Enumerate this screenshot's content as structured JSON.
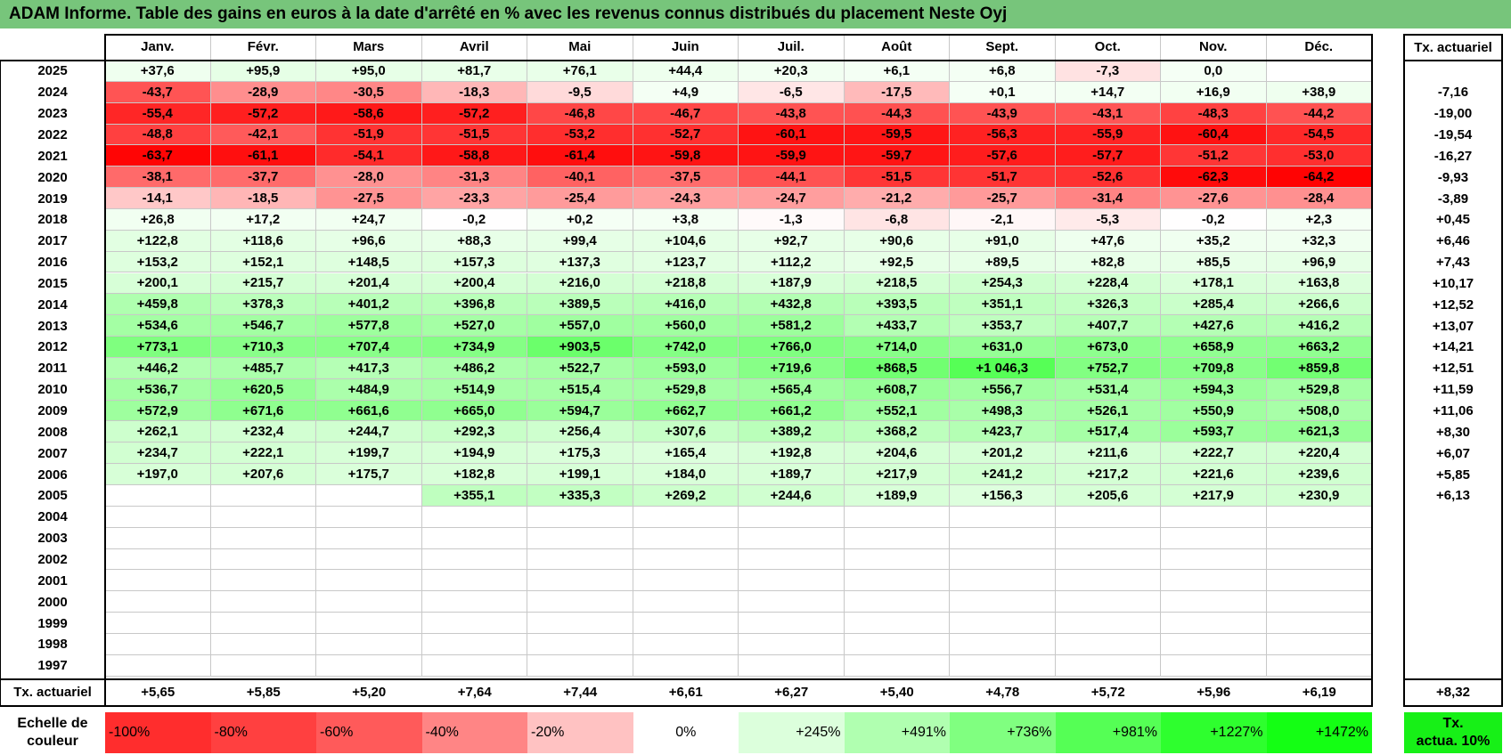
{
  "title": "ADAM Informe. Table des gains en euros à la date d'arrêté en % avec les revenus connus distribués du placement Neste Oyj",
  "months": [
    "Janv.",
    "Févr.",
    "Mars",
    "Avril",
    "Mai",
    "Juin",
    "Juil.",
    "Août",
    "Sept.",
    "Oct.",
    "Nov.",
    "Déc."
  ],
  "annual_header": "Tx. actuariel",
  "rows": [
    {
      "year": "2025",
      "values": [
        "+37,6",
        "+95,9",
        "+95,0",
        "+81,7",
        "+76,1",
        "+44,4",
        "+20,3",
        "+6,1",
        "+6,8",
        "-7,3",
        "0,0",
        ""
      ],
      "annual": ""
    },
    {
      "year": "2024",
      "values": [
        "-43,7",
        "-28,9",
        "-30,5",
        "-18,3",
        "-9,5",
        "+4,9",
        "-6,5",
        "-17,5",
        "+0,1",
        "+14,7",
        "+16,9",
        "+38,9"
      ],
      "annual": "-7,16"
    },
    {
      "year": "2023",
      "values": [
        "-55,4",
        "-57,2",
        "-58,6",
        "-57,2",
        "-46,8",
        "-46,7",
        "-43,8",
        "-44,3",
        "-43,9",
        "-43,1",
        "-48,3",
        "-44,2"
      ],
      "annual": "-19,00"
    },
    {
      "year": "2022",
      "values": [
        "-48,8",
        "-42,1",
        "-51,9",
        "-51,5",
        "-53,2",
        "-52,7",
        "-60,1",
        "-59,5",
        "-56,3",
        "-55,9",
        "-60,4",
        "-54,5"
      ],
      "annual": "-19,54"
    },
    {
      "year": "2021",
      "values": [
        "-63,7",
        "-61,1",
        "-54,1",
        "-58,8",
        "-61,4",
        "-59,8",
        "-59,9",
        "-59,7",
        "-57,6",
        "-57,7",
        "-51,2",
        "-53,0"
      ],
      "annual": "-16,27"
    },
    {
      "year": "2020",
      "values": [
        "-38,1",
        "-37,7",
        "-28,0",
        "-31,3",
        "-40,1",
        "-37,5",
        "-44,1",
        "-51,5",
        "-51,7",
        "-52,6",
        "-62,3",
        "-64,2"
      ],
      "annual": "-9,93"
    },
    {
      "year": "2019",
      "values": [
        "-14,1",
        "-18,5",
        "-27,5",
        "-23,3",
        "-25,4",
        "-24,3",
        "-24,7",
        "-21,2",
        "-25,7",
        "-31,4",
        "-27,6",
        "-28,4"
      ],
      "annual": "-3,89"
    },
    {
      "year": "2018",
      "values": [
        "+26,8",
        "+17,2",
        "+24,7",
        "-0,2",
        "+0,2",
        "+3,8",
        "-1,3",
        "-6,8",
        "-2,1",
        "-5,3",
        "-0,2",
        "+2,3"
      ],
      "annual": "+0,45"
    },
    {
      "year": "2017",
      "values": [
        "+122,8",
        "+118,6",
        "+96,6",
        "+88,3",
        "+99,4",
        "+104,6",
        "+92,7",
        "+90,6",
        "+91,0",
        "+47,6",
        "+35,2",
        "+32,3"
      ],
      "annual": "+6,46"
    },
    {
      "year": "2016",
      "values": [
        "+153,2",
        "+152,1",
        "+148,5",
        "+157,3",
        "+137,3",
        "+123,7",
        "+112,2",
        "+92,5",
        "+89,5",
        "+82,8",
        "+85,5",
        "+96,9"
      ],
      "annual": "+7,43"
    },
    {
      "year": "2015",
      "values": [
        "+200,1",
        "+215,7",
        "+201,4",
        "+200,4",
        "+216,0",
        "+218,8",
        "+187,9",
        "+218,5",
        "+254,3",
        "+228,4",
        "+178,1",
        "+163,8"
      ],
      "annual": "+10,17"
    },
    {
      "year": "2014",
      "values": [
        "+459,8",
        "+378,3",
        "+401,2",
        "+396,8",
        "+389,5",
        "+416,0",
        "+432,8",
        "+393,5",
        "+351,1",
        "+326,3",
        "+285,4",
        "+266,6"
      ],
      "annual": "+12,52"
    },
    {
      "year": "2013",
      "values": [
        "+534,6",
        "+546,7",
        "+577,8",
        "+527,0",
        "+557,0",
        "+560,0",
        "+581,2",
        "+433,7",
        "+353,7",
        "+407,7",
        "+427,6",
        "+416,2"
      ],
      "annual": "+13,07"
    },
    {
      "year": "2012",
      "values": [
        "+773,1",
        "+710,3",
        "+707,4",
        "+734,9",
        "+903,5",
        "+742,0",
        "+766,0",
        "+714,0",
        "+631,0",
        "+673,0",
        "+658,9",
        "+663,2"
      ],
      "annual": "+14,21"
    },
    {
      "year": "2011",
      "values": [
        "+446,2",
        "+485,7",
        "+417,3",
        "+486,2",
        "+522,7",
        "+593,0",
        "+719,6",
        "+868,5",
        "+1 046,3",
        "+752,7",
        "+709,8",
        "+859,8"
      ],
      "annual": "+12,51"
    },
    {
      "year": "2010",
      "values": [
        "+536,7",
        "+620,5",
        "+484,9",
        "+514,9",
        "+515,4",
        "+529,8",
        "+565,4",
        "+608,7",
        "+556,7",
        "+531,4",
        "+594,3",
        "+529,8"
      ],
      "annual": "+11,59"
    },
    {
      "year": "2009",
      "values": [
        "+572,9",
        "+671,6",
        "+661,6",
        "+665,0",
        "+594,7",
        "+662,7",
        "+661,2",
        "+552,1",
        "+498,3",
        "+526,1",
        "+550,9",
        "+508,0"
      ],
      "annual": "+11,06"
    },
    {
      "year": "2008",
      "values": [
        "+262,1",
        "+232,4",
        "+244,7",
        "+292,3",
        "+256,4",
        "+307,6",
        "+389,2",
        "+368,2",
        "+423,7",
        "+517,4",
        "+593,7",
        "+621,3"
      ],
      "annual": "+8,30"
    },
    {
      "year": "2007",
      "values": [
        "+234,7",
        "+222,1",
        "+199,7",
        "+194,9",
        "+175,3",
        "+165,4",
        "+192,8",
        "+204,6",
        "+201,2",
        "+211,6",
        "+222,7",
        "+220,4"
      ],
      "annual": "+6,07"
    },
    {
      "year": "2006",
      "values": [
        "+197,0",
        "+207,6",
        "+175,7",
        "+182,8",
        "+199,1",
        "+184,0",
        "+189,7",
        "+217,9",
        "+241,2",
        "+217,2",
        "+221,6",
        "+239,6"
      ],
      "annual": "+5,85"
    },
    {
      "year": "2005",
      "values": [
        "",
        "",
        "",
        "+355,1",
        "+335,3",
        "+269,2",
        "+244,6",
        "+189,9",
        "+156,3",
        "+205,6",
        "+217,9",
        "+230,9"
      ],
      "annual": "+6,13"
    },
    {
      "year": "2004",
      "values": [
        "",
        "",
        "",
        "",
        "",
        "",
        "",
        "",
        "",
        "",
        "",
        ""
      ],
      "annual": ""
    },
    {
      "year": "2003",
      "values": [
        "",
        "",
        "",
        "",
        "",
        "",
        "",
        "",
        "",
        "",
        "",
        ""
      ],
      "annual": ""
    },
    {
      "year": "2002",
      "values": [
        "",
        "",
        "",
        "",
        "",
        "",
        "",
        "",
        "",
        "",
        "",
        ""
      ],
      "annual": ""
    },
    {
      "year": "2001",
      "values": [
        "",
        "",
        "",
        "",
        "",
        "",
        "",
        "",
        "",
        "",
        "",
        ""
      ],
      "annual": ""
    },
    {
      "year": "2000",
      "values": [
        "",
        "",
        "",
        "",
        "",
        "",
        "",
        "",
        "",
        "",
        "",
        ""
      ],
      "annual": ""
    },
    {
      "year": "1999",
      "values": [
        "",
        "",
        "",
        "",
        "",
        "",
        "",
        "",
        "",
        "",
        "",
        ""
      ],
      "annual": ""
    },
    {
      "year": "1998",
      "values": [
        "",
        "",
        "",
        "",
        "",
        "",
        "",
        "",
        "",
        "",
        "",
        ""
      ],
      "annual": ""
    },
    {
      "year": "1997",
      "values": [
        "",
        "",
        "",
        "",
        "",
        "",
        "",
        "",
        "",
        "",
        "",
        ""
      ],
      "annual": ""
    }
  ],
  "footer": {
    "label": "Tx. actuariel",
    "values": [
      "+5,65",
      "+5,85",
      "+5,20",
      "+7,64",
      "+7,44",
      "+6,61",
      "+6,27",
      "+5,40",
      "+4,78",
      "+5,72",
      "+5,96",
      "+6,19"
    ],
    "annual": "+8,32"
  },
  "legend": {
    "label_line1": "Echelle de",
    "label_line2": "couleur",
    "items": [
      {
        "text": "-100%",
        "color": "#ff2d2d",
        "align": "left"
      },
      {
        "text": "-80%",
        "color": "#ff4040",
        "align": "left"
      },
      {
        "text": "-60%",
        "color": "#ff5a5a",
        "align": "left"
      },
      {
        "text": "-40%",
        "color": "#ff8585",
        "align": "left"
      },
      {
        "text": "-20%",
        "color": "#ffc2c2",
        "align": "left"
      },
      {
        "text": "0%",
        "color": "#ffffff",
        "align": "center"
      },
      {
        "text": "+245%",
        "color": "#dcffdc",
        "align": "right"
      },
      {
        "text": "+491%",
        "color": "#b0ffb0",
        "align": "right"
      },
      {
        "text": "+736%",
        "color": "#80ff80",
        "align": "right"
      },
      {
        "text": "+981%",
        "color": "#55ff55",
        "align": "right"
      },
      {
        "text": "+1227%",
        "color": "#2eff2e",
        "align": "right"
      },
      {
        "text": "+1472%",
        "color": "#14ff14",
        "align": "right"
      }
    ],
    "final_line1": "Tx.",
    "final_line2": "actua. 10%",
    "final_color": "#17f017"
  },
  "colors": {
    "title_bar": "#77c57b",
    "negative_base": "#ff0000",
    "positive_base": "#00ff00"
  }
}
